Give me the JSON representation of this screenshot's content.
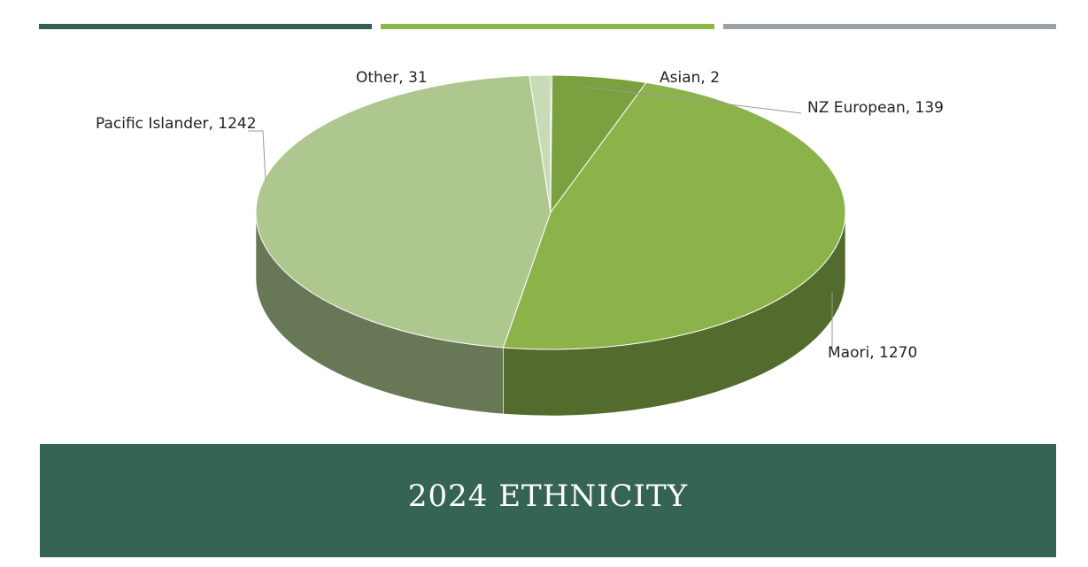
{
  "chart_data": {
    "type": "pie3d",
    "title": "2024 ETHNICITY",
    "categories": [
      "Asian",
      "NZ European",
      "Maori",
      "Pacific Islander",
      "Other"
    ],
    "values": [
      2,
      139,
      1270,
      1242,
      31
    ],
    "value_labels": [
      "Asian, 2",
      "NZ European, 139",
      "Maori, 1270",
      "Pacific Islander, 1242",
      "Other, 31"
    ],
    "colors": [
      "#5f8a2f",
      "#7aa03f",
      "#8bb34a",
      "#aec78f",
      "#c9dbb6"
    ]
  }
}
